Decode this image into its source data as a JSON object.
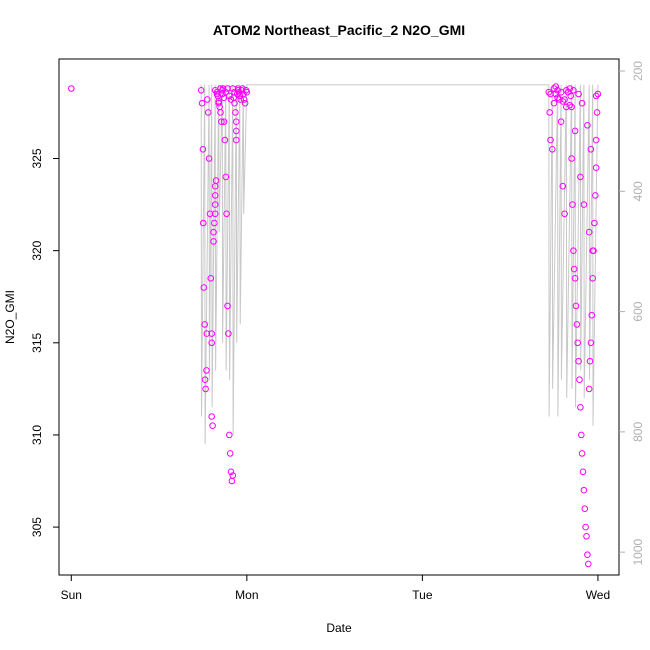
{
  "chart_data": {
    "type": "scatter",
    "title": "ATOM2 Northeast_Pacific_2 N2O_GMI",
    "xlabel": "Date",
    "ylabel": "N2O_GMI",
    "x_tick_labels": [
      "Sun",
      "Mon",
      "Tue",
      "Wed"
    ],
    "x_range": [
      -0.07,
      3.12
    ],
    "y_range": [
      302.4,
      330.4
    ],
    "y_ticks": [
      305,
      310,
      315,
      320,
      325
    ],
    "y2_range": [
      1038,
      180
    ],
    "y2_ticks": [
      200,
      400,
      600,
      800,
      1000
    ],
    "y2_reversed": true,
    "grid": false,
    "colors": {
      "points": "#ff00ff",
      "profile_line": "#c8c8c8",
      "axis": "#000000",
      "axis2": "#b0b0b0"
    },
    "series": [
      {
        "kind": "points",
        "x": [
          0.0,
          0.74,
          0.745,
          0.75,
          0.752,
          0.755,
          0.76,
          0.762,
          0.765,
          0.77,
          0.772,
          0.775,
          0.78,
          0.785,
          0.79,
          0.795,
          0.8,
          0.8,
          0.8,
          0.805,
          0.81,
          0.81,
          0.815,
          0.82,
          0.82,
          0.82,
          0.82,
          0.825,
          0.83,
          0.835,
          0.84,
          0.845,
          0.85,
          0.855,
          0.86,
          0.865,
          0.87,
          0.875,
          0.88,
          0.885,
          0.89,
          0.895,
          0.9,
          0.905,
          0.91,
          0.915,
          0.92,
          0.925,
          0.93,
          0.935,
          0.94,
          0.94,
          0.94,
          0.945,
          0.95,
          0.95,
          0.955,
          0.96,
          0.965,
          0.97,
          0.975,
          0.98,
          0.985,
          0.99,
          0.995,
          1.0,
          0.82,
          0.83,
          0.84,
          0.85,
          0.86,
          0.87,
          0.88,
          0.89,
          0.9,
          0.91,
          0.92,
          0.93,
          2.72,
          2.725,
          2.73,
          2.74,
          2.75,
          2.76,
          2.77,
          2.78,
          2.79,
          2.8,
          2.81,
          2.82,
          2.83,
          2.84,
          2.845,
          2.85,
          2.855,
          2.86,
          2.865,
          2.87,
          2.875,
          2.88,
          2.885,
          2.89,
          2.895,
          2.9,
          2.905,
          2.91,
          2.915,
          2.92,
          2.925,
          2.93,
          2.935,
          2.94,
          2.945,
          2.95,
          2.955,
          2.96,
          2.965,
          2.97,
          2.975,
          2.98,
          2.985,
          2.99,
          2.99,
          2.995,
          3.0,
          2.75,
          2.77,
          2.8,
          2.82,
          2.85,
          2.87,
          2.9,
          2.92,
          2.95,
          2.97,
          2.73,
          2.76,
          2.79,
          2.81,
          2.84,
          2.86,
          2.89,
          2.91,
          2.94,
          2.96,
          2.99
        ],
        "y": [
          328.8,
          328.7,
          328.0,
          325.5,
          321.5,
          318.0,
          316.0,
          313.0,
          312.5,
          313.5,
          315.5,
          328.2,
          327.5,
          325.0,
          322.0,
          318.5,
          315.5,
          315.0,
          311.0,
          310.5,
          320.5,
          321.0,
          321.5,
          322.0,
          322.5,
          323.0,
          323.5,
          323.8,
          328.6,
          328.4,
          328.0,
          327.8,
          327.5,
          327.0,
          328.5,
          328.8,
          327.0,
          326.0,
          324.0,
          322.0,
          317.0,
          315.5,
          310.0,
          309.0,
          308.0,
          307.5,
          307.8,
          328.3,
          328.0,
          327.5,
          327.0,
          326.5,
          326.0,
          328.5,
          328.8,
          328.7,
          328.6,
          328.4,
          328.2,
          328.7,
          328.8,
          328.5,
          328.2,
          328.0,
          328.7,
          328.6,
          328.7,
          328.5,
          328.1,
          328.8,
          328.7,
          328.3,
          328.6,
          328.8,
          328.4,
          328.2,
          328.8,
          328.6,
          328.6,
          327.5,
          326.0,
          325.5,
          328.0,
          328.5,
          328.7,
          328.2,
          327.0,
          323.5,
          322.0,
          327.8,
          328.6,
          328.8,
          328.4,
          325.0,
          322.5,
          320.0,
          319.0,
          318.5,
          317.0,
          316.0,
          315.0,
          314.0,
          313.0,
          311.5,
          310.0,
          309.0,
          308.0,
          307.0,
          306.0,
          305.0,
          304.5,
          303.5,
          303.0,
          312.5,
          314.0,
          315.0,
          316.5,
          318.5,
          320.0,
          321.5,
          323.0,
          324.5,
          326.0,
          327.5,
          328.5,
          328.8,
          328.3,
          328.1,
          328.7,
          327.8,
          326.5,
          324.0,
          322.5,
          321.0,
          320.0,
          328.5,
          328.9,
          328.6,
          328.2,
          327.9,
          328.7,
          328.5,
          328.0,
          326.8,
          325.5,
          328.4
        ],
        "name": ""
      },
      {
        "kind": "profile",
        "x": [
          0.74,
          0.742,
          0.76,
          0.762,
          0.785,
          0.787,
          0.8,
          0.802,
          0.82,
          0.822,
          0.84,
          0.842,
          0.86,
          0.862,
          0.88,
          0.882,
          0.9,
          0.902,
          0.92,
          0.922,
          0.94,
          0.942,
          0.96,
          0.962,
          0.98,
          0.982,
          1.0,
          2.72,
          2.722,
          2.74,
          2.742,
          2.77,
          2.772,
          2.79,
          2.792,
          2.82,
          2.822,
          2.85,
          2.852,
          2.87,
          2.872,
          2.9,
          2.902,
          2.92,
          2.922,
          2.95,
          2.952,
          2.97,
          2.972,
          3.0
        ],
        "y": [
          329.0,
          311.0,
          329.0,
          309.5,
          329.0,
          313.0,
          329.0,
          311.5,
          329.0,
          313.5,
          329.0,
          321.0,
          329.0,
          315.0,
          329.0,
          313.5,
          329.0,
          313.0,
          329.0,
          310.0,
          329.0,
          315.0,
          329.0,
          316.0,
          329.0,
          322.0,
          329.0,
          329.0,
          311.0,
          329.0,
          312.5,
          329.0,
          311.0,
          329.0,
          313.0,
          329.0,
          312.0,
          329.0,
          312.5,
          329.0,
          311.5,
          329.0,
          313.5,
          329.0,
          312.0,
          329.0,
          313.0,
          329.0,
          310.5,
          329.0
        ],
        "name": ""
      }
    ]
  }
}
